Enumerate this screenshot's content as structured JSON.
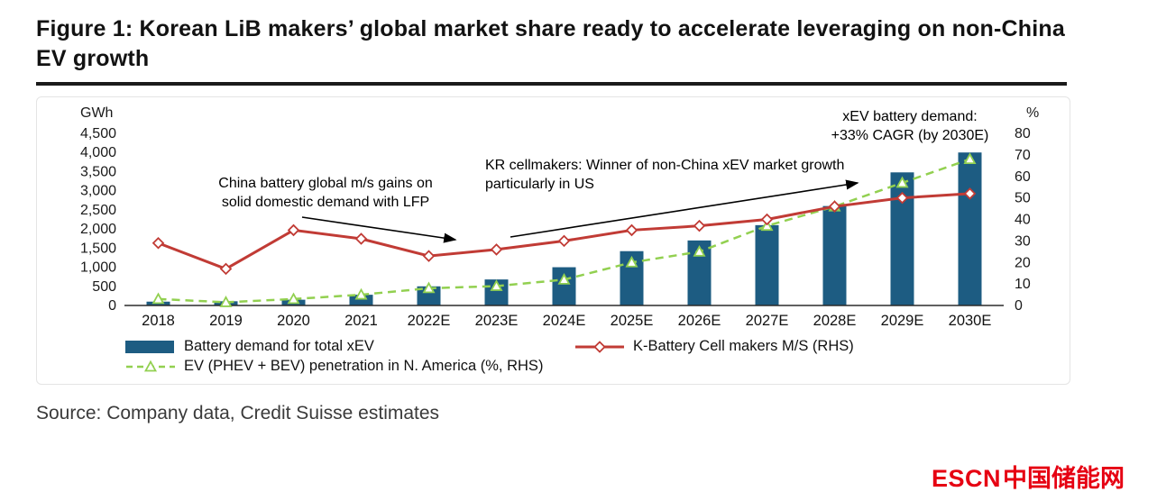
{
  "figure": {
    "title": "Figure 1: Korean LiB makers’ global market share ready to accelerate leveraging on non-China EV growth",
    "source": "Source: Company data, Credit Suisse estimates"
  },
  "logo": {
    "text_en": "ESCN",
    "text_cn": "中国储能网",
    "color": "#e60012"
  },
  "chart_data": {
    "type": "bar",
    "subtype": "combo-bar-line",
    "categories": [
      "2018",
      "2019",
      "2020",
      "2021",
      "2022E",
      "2023E",
      "2024E",
      "2025E",
      "2026E",
      "2027E",
      "2028E",
      "2029E",
      "2030E"
    ],
    "left_axis": {
      "label": "GWh",
      "min": 0,
      "max": 4500,
      "tick_step": 500,
      "ticks": [
        0,
        500,
        1000,
        1500,
        2000,
        2500,
        3000,
        3500,
        4000,
        4500
      ]
    },
    "right_axis": {
      "label": "%",
      "min": 0,
      "max": 80,
      "tick_step": 10,
      "ticks": [
        0,
        10,
        20,
        30,
        40,
        50,
        60,
        70,
        80
      ]
    },
    "grid": false,
    "legend_position": "bottom",
    "series": [
      {
        "name": "Battery demand for total xEV",
        "type": "bar",
        "axis": "left",
        "color": "#1d5c82",
        "values": [
          100,
          110,
          150,
          280,
          500,
          680,
          1000,
          1420,
          1700,
          2100,
          2600,
          3480,
          4000
        ]
      },
      {
        "name": "K-Battery Cell makers M/S (RHS)",
        "type": "line",
        "axis": "right",
        "color": "#c13b35",
        "marker": "diamond",
        "values": [
          29,
          17,
          35,
          31,
          23,
          26,
          30,
          35,
          37,
          40,
          46,
          50,
          52
        ]
      },
      {
        "name": "EV (PHEV + BEV) penetration in N. America (%, RHS)",
        "type": "dashed-line",
        "axis": "right",
        "color": "#92d050",
        "marker": "triangle",
        "values": [
          3,
          1.5,
          3,
          5,
          8,
          9,
          12,
          20,
          25,
          37,
          46,
          57,
          68
        ]
      }
    ],
    "annotations": [
      {
        "lines": [
          "China battery global m/s gains on",
          "solid domestic demand with LFP"
        ]
      },
      {
        "lines": [
          "KR cellmakers: Winner of non-China xEV market growth",
          "particularly in US"
        ]
      },
      {
        "lines": [
          "xEV battery demand:",
          "+33% CAGR (by 2030E)"
        ]
      }
    ]
  }
}
